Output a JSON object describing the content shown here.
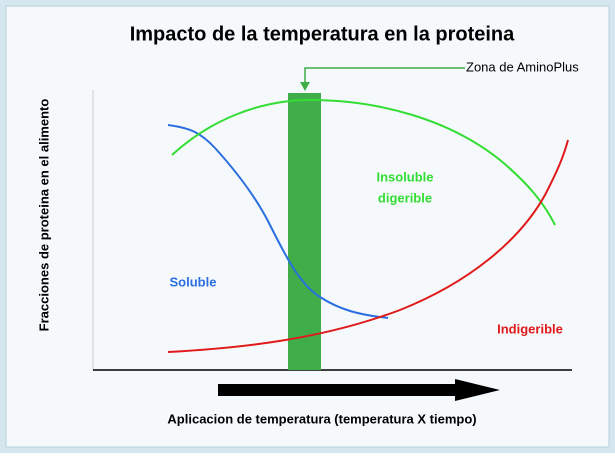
{
  "title": "Impacto de la temperatura en la proteina",
  "y_axis_label": "Fracciones de proteina en el alimento",
  "x_axis_label": "Aplicacion de temperatura (temperatura X tiempo)",
  "annotation": "Zona de AminoPlus",
  "curve_labels": {
    "soluble": "Soluble",
    "insoluble": [
      "Insoluble",
      "digerible"
    ],
    "indigerible": "Indigerible"
  }
}
